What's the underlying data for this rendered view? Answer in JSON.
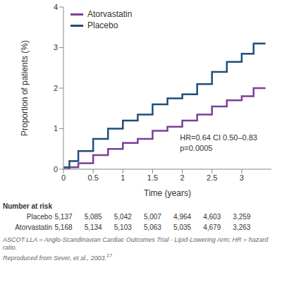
{
  "chart_data": {
    "type": "line",
    "x_label": "Time (years)",
    "y_label": "Proportion of patients (%)",
    "x": [
      0,
      0.1,
      0.25,
      0.5,
      0.75,
      1,
      1.25,
      1.5,
      1.75,
      2,
      2.25,
      2.5,
      2.75,
      3,
      3.2,
      3.4
    ],
    "series": [
      {
        "name": "Atorvastatin",
        "color": "#7b3f98",
        "line_style": "step",
        "values": [
          0,
          0.05,
          0.15,
          0.35,
          0.5,
          0.65,
          0.75,
          0.95,
          1.05,
          1.2,
          1.35,
          1.55,
          1.7,
          1.8,
          2.0,
          2.0
        ]
      },
      {
        "name": "Placebo",
        "color": "#1f4e79",
        "line_style": "step",
        "values": [
          0.05,
          0.2,
          0.45,
          0.75,
          1.0,
          1.2,
          1.35,
          1.6,
          1.75,
          1.85,
          2.1,
          2.4,
          2.65,
          2.85,
          3.1,
          3.1
        ]
      }
    ],
    "xlim": [
      0,
      3.5
    ],
    "xticks": [
      0,
      0.5,
      1,
      1.5,
      2,
      2.5,
      3
    ],
    "ylim": [
      0,
      4
    ],
    "yticks": [
      0,
      1,
      2,
      3,
      4
    ],
    "legend": "upper left",
    "grid": false,
    "annotations": [
      "HR=0.64 CI 0.50–0.83",
      "p=0.0005"
    ]
  },
  "risk_table": {
    "title": "Number at risk",
    "times": [
      0,
      0.5,
      1,
      1.5,
      2,
      2.5,
      3
    ],
    "rows": [
      {
        "name": "Placebo",
        "values": [
          "5,137",
          "5,085",
          "5,042",
          "5,007",
          "4,964",
          "4,603",
          "3,259"
        ]
      },
      {
        "name": "Atorvastatin",
        "values": [
          "5,168",
          "5,134",
          "5,103",
          "5,063",
          "5,035",
          "4,679",
          "3,263"
        ]
      }
    ]
  },
  "footnote": {
    "text": "ASCOT-LLA = Anglo-Scandinavian Cardiac Outcomes Trial - Lipid-Lowering Arm; HR = hazard ratio.",
    "source": "Reproduced from Sever, et al., 2003.",
    "source_ref": "17"
  }
}
